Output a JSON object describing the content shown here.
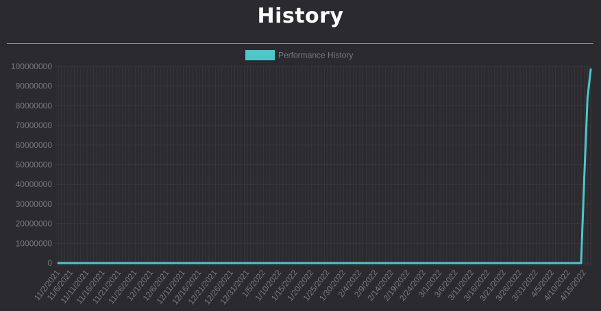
{
  "header": {
    "title": "History"
  },
  "chart_data": {
    "type": "line",
    "title": "History",
    "legend": {
      "position": "top",
      "entries": [
        "Performance History"
      ]
    },
    "series": [
      {
        "name": "Performance History",
        "color": "#4dc7c7"
      }
    ],
    "y_ticks": [
      "0",
      "10000000",
      "20000000",
      "30000000",
      "40000000",
      "50000000",
      "60000000",
      "70000000",
      "80000000",
      "90000000",
      "100000000"
    ],
    "ylim": [
      0,
      100000000
    ],
    "x_tick_labels": [
      "11/2/2021",
      "11/6/2021",
      "11/11/2021",
      "11/16/2021",
      "11/21/2021",
      "11/26/2021",
      "12/1/2021",
      "12/6/2021",
      "12/11/2021",
      "12/16/2021",
      "12/21/2021",
      "12/26/2021",
      "12/31/2021",
      "1/5/2022",
      "1/10/2022",
      "1/15/2022",
      "1/20/2022",
      "1/25/2022",
      "1/30/2022",
      "2/4/2022",
      "2/9/2022",
      "2/14/2022",
      "2/19/2022",
      "2/24/2022",
      "3/1/2022",
      "3/6/2022",
      "3/11/2022",
      "3/16/2022",
      "3/21/2022",
      "3/26/2022",
      "3/31/2022",
      "4/5/2022",
      "4/10/2022",
      "4/15/2022"
    ],
    "x_range": [
      "11/2/2021",
      "4/17/2022"
    ],
    "points": [
      {
        "x": "11/2/2021",
        "y": 0
      },
      {
        "x": "4/14/2022",
        "y": 0
      },
      {
        "x": "4/15/2022",
        "y": 44000000
      },
      {
        "x": "4/16/2022",
        "y": 84000000
      },
      {
        "x": "4/17/2022",
        "y": 98500000
      }
    ],
    "grid": true
  }
}
